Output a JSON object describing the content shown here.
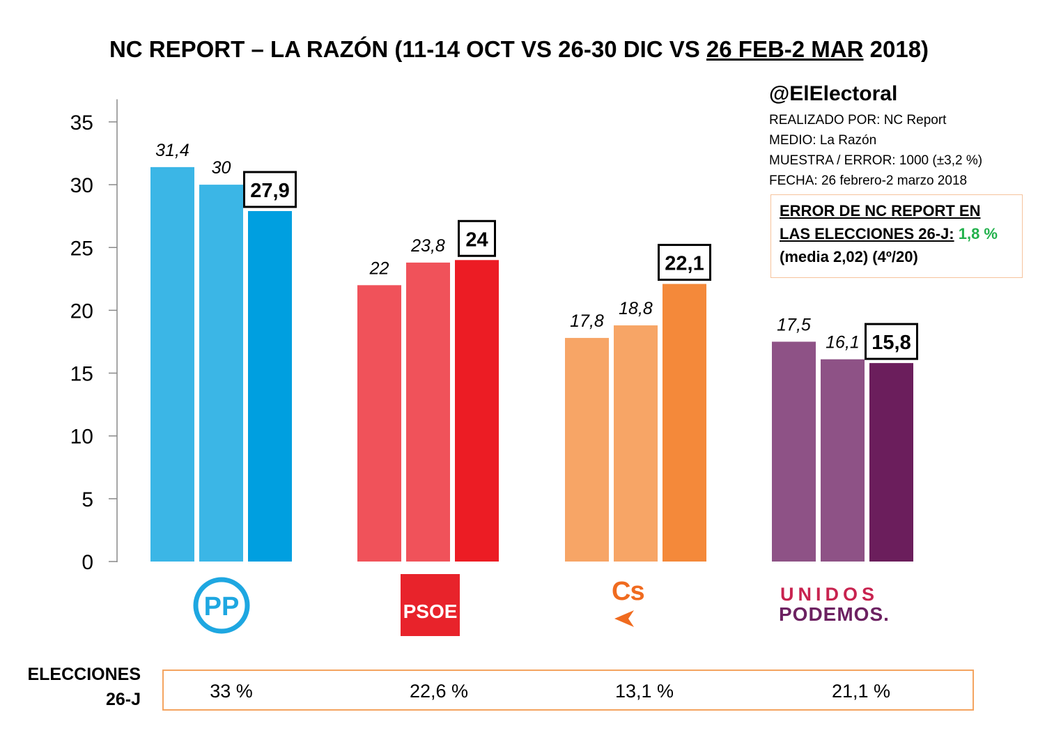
{
  "title": {
    "part1": "NC REPORT – LA RAZÓN (11-14 OCT VS 26-30 DIC VS ",
    "part2": "26 FEB-2 MAR",
    "part3": " 2018)"
  },
  "info": {
    "handle": "@ElElectoral",
    "realizado": "REALIZADO POR: NC Report",
    "medio": "MEDIO: La Razón",
    "muestra": "MUESTRA / ERROR: 1000 (±3,2 %)",
    "fecha": "FECHA: 26 febrero-2 marzo 2018"
  },
  "error_box": {
    "line1": "ERROR DE NC REPORT EN",
    "line2": "LAS ELECCIONES 26-J:",
    "value": "1,8 %",
    "line3": "(media 2,02) (4º/20)"
  },
  "elecciones": {
    "label_line1": "ELECCIONES",
    "label_line2": "26-J",
    "values": [
      "33 %",
      "22,6 %",
      "13,1 %",
      "21,1 %"
    ]
  },
  "logos": {
    "pp": "PP",
    "psoe": "PSOE",
    "cs": "Cs",
    "up_line1": "UNIDOS",
    "up_line2": "PODEMOS."
  },
  "chart_data": {
    "type": "bar",
    "categories": [
      "PP",
      "PSOE",
      "Cs",
      "Unidos Podemos"
    ],
    "series": [
      {
        "values": [
          31.4,
          22,
          17.8,
          17.5
        ]
      },
      {
        "values": [
          30,
          23.8,
          18.8,
          16.1
        ]
      },
      {
        "values": [
          27.9,
          24,
          22.1,
          15.8
        ]
      }
    ],
    "value_labels": [
      [
        "31,4",
        "30",
        "27,9"
      ],
      [
        "22",
        "23,8",
        "24"
      ],
      [
        "17,8",
        "18,8",
        "22,1"
      ],
      [
        "17,5",
        "16,1",
        "15,8"
      ]
    ],
    "colors": [
      [
        "#3bb6e6",
        "#3bb6e6",
        "#009fe0"
      ],
      [
        "#f0525a",
        "#f0525a",
        "#ec1c24"
      ],
      [
        "#f7a566",
        "#f7a566",
        "#f4893a"
      ],
      [
        "#8e5286",
        "#8e5286",
        "#6b1e5c"
      ]
    ],
    "yticks": [
      "0",
      "5",
      "10",
      "15",
      "20",
      "25",
      "30",
      "35"
    ],
    "ylim": [
      0,
      36.8
    ],
    "grid": false,
    "xlabel": "",
    "ylabel": ""
  }
}
